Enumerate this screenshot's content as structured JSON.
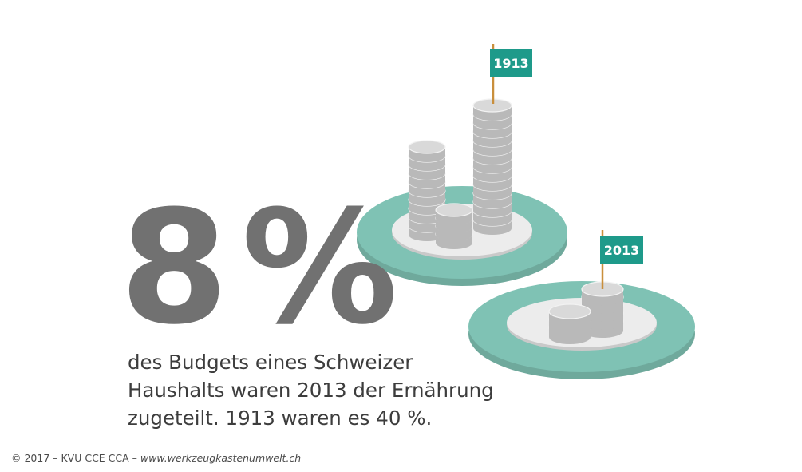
{
  "headline": {
    "value": "8",
    "unit": "%"
  },
  "description_lines": [
    "des Budgets eines Schweizer",
    "Haushalts waren 2013 der Ernährung",
    "zugeteilt. 1913 waren es 40 %."
  ],
  "plates": [
    {
      "flag_label": "1913"
    },
    {
      "flag_label": "2013"
    }
  ],
  "footer": {
    "copyright": "© 2017 – KVU CCE CCA – ",
    "url": "www.werkzeugkastenumwelt.ch"
  },
  "colors": {
    "teal_plate": "#7fc2b4",
    "teal_flag": "#1e9a8a",
    "headline_gray": "#717171",
    "coin_gray": "#d9d9d9",
    "text_dark": "#3d3d3d"
  }
}
